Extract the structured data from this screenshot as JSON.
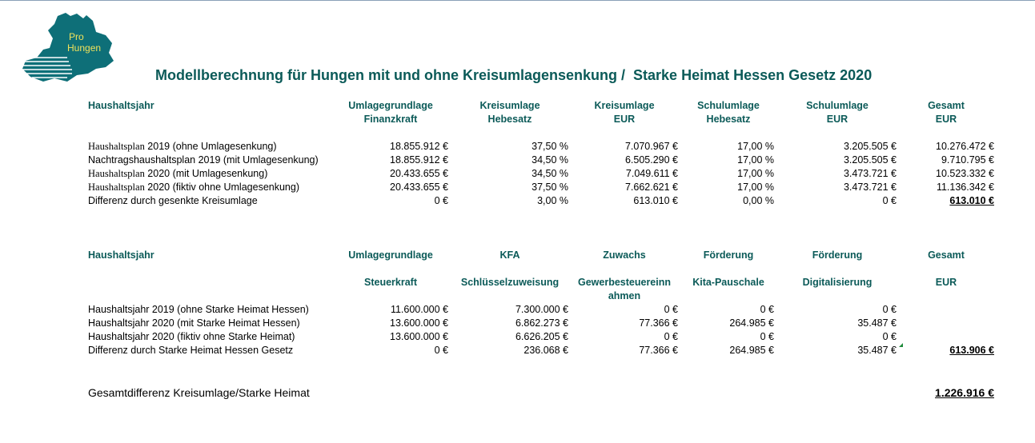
{
  "logo": {
    "line1": "Pro",
    "line2": "Hungen",
    "colors": {
      "teal": "#0e6f78",
      "text": "#f0e25a"
    }
  },
  "title": "Modellberechnung für Hungen mit und ohne Kreisumlagensenkung /  Starke Heimat Hessen Gesetz 2020",
  "table1": {
    "headers": {
      "year": "Haushaltsjahr",
      "c1a": "Umlagegrundlage",
      "c1b": "Finanzkraft",
      "c2a": "Kreisumlage",
      "c2b": "Hebesatz",
      "c3a": "Kreisumlage",
      "c3b": "EUR",
      "c4a": "Schulumlage",
      "c4b": "Hebesatz",
      "c5a": "Schulumlage",
      "c5b": "EUR",
      "c6a": "Gesamt",
      "c6b": "EUR"
    },
    "rows": [
      {
        "lp": "Haushaltsplan",
        "ls": " 2019 (ohne Umlagesenkung)",
        "v": [
          "18.855.912 €",
          "37,50 %",
          "7.070.967 €",
          "17,00 %",
          "3.205.505 €",
          "10.276.472 €"
        ]
      },
      {
        "lp": "",
        "ls": "Nachtragshaushaltsplan 2019 (mit Umlagesenkung)",
        "v": [
          "18.855.912 €",
          "34,50 %",
          "6.505.290 €",
          "17,00 %",
          "3.205.505 €",
          "9.710.795 €"
        ]
      },
      {
        "lp": "Haushaltsplan",
        "ls": " 2020 (mit Umlagesenkung)",
        "v": [
          "20.433.655 €",
          "34,50 %",
          "7.049.611 €",
          "17,00 %",
          "3.473.721 €",
          "10.523.332 €"
        ]
      },
      {
        "lp": "Haushaltsplan",
        "ls": " 2020 (fiktiv ohne Umlagesenkung)",
        "v": [
          "20.433.655 €",
          "37,50 %",
          "7.662.621 €",
          "17,00 %",
          "3.473.721 €",
          "11.136.342 €"
        ]
      },
      {
        "lp": "",
        "ls": "Differenz durch gesenkte Kreisumlage",
        "v": [
          "0 €",
          "3,00 %",
          "613.010 €",
          "0,00 %",
          "0 €",
          "613.010 €"
        ]
      }
    ]
  },
  "table2": {
    "headers": {
      "year": "Haushaltsjahr",
      "c1a": "Umlagegrundlage",
      "c1b": "Steuerkraft",
      "c2a": "KFA",
      "c2b": "Schlüsselzuweisung",
      "c3a": "Zuwachs",
      "c3b": "Gewerbesteuereinn",
      "c3c": "ahmen",
      "c4a": "Förderung",
      "c4b": "Kita-Pauschale",
      "c5a": "Förderung",
      "c5b": "Digitalisierung",
      "c6a": "Gesamt",
      "c6b": "EUR"
    },
    "rows": [
      {
        "label": "Haushaltsjahr 2019 (ohne Starke Heimat Hessen)",
        "v": [
          "11.600.000 €",
          "7.300.000 €",
          "0 €",
          "0 €",
          "0 €",
          ""
        ]
      },
      {
        "label": "Haushaltsjahr 2020 (mit Starke Heimat Hessen)",
        "v": [
          "13.600.000 €",
          "6.862.273 €",
          "77.366 €",
          "264.985 €",
          "35.487 €",
          ""
        ]
      },
      {
        "label": "Haushaltsjahr 2020 (fiktiv ohne Starke Heimat)",
        "v": [
          "13.600.000 €",
          "6.626.205 €",
          "0 €",
          "0 €",
          "0 €",
          ""
        ]
      },
      {
        "label": "Differenz durch Starke Heimat Hessen Gesetz",
        "v": [
          "0 €",
          "236.068 €",
          "77.366 €",
          "264.985 €",
          "35.487 €",
          "613.906 €"
        ]
      }
    ]
  },
  "total": {
    "label": "Gesamtdifferenz Kreisumlage/Starke Heimat",
    "value": "1.226.916 €"
  }
}
